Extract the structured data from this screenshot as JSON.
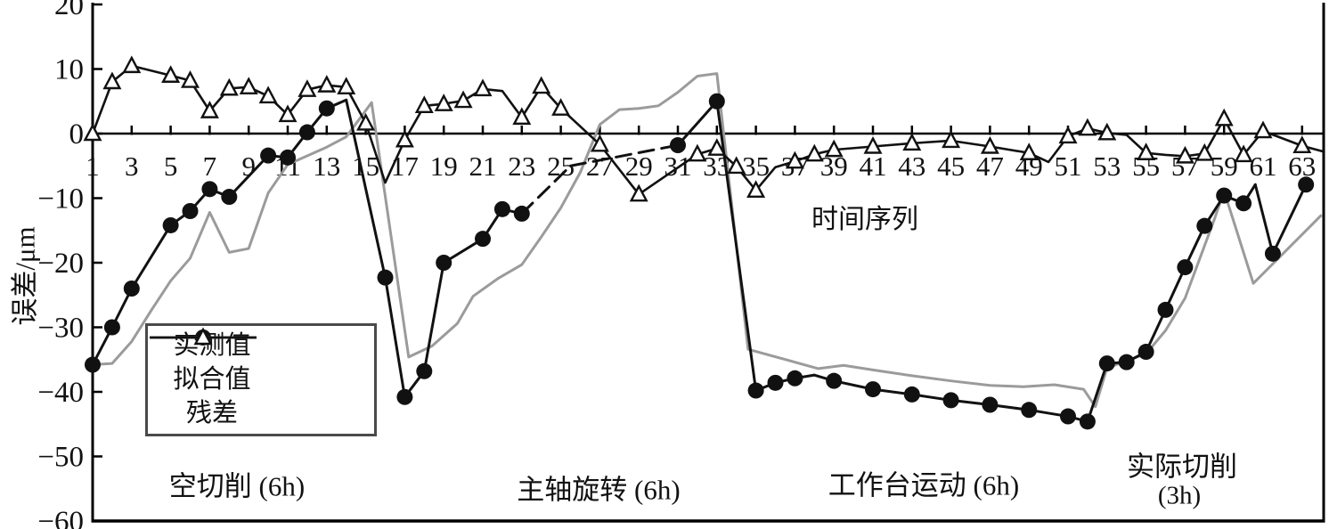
{
  "figure": {
    "background": "#ffffff"
  },
  "chart_data": {
    "type": "line",
    "title": "",
    "xlabel": "时间序列",
    "ylabel": "误差/μm",
    "xlim": [
      1,
      64.2
    ],
    "ylim": [
      -60,
      20
    ],
    "grid": false,
    "legend_position": "inside-lower-left",
    "colors": {
      "measured": "#111111",
      "fitted": "#9b9b9b",
      "residual": "#111111",
      "axis": "#000000",
      "legend_border": "#4a4a4a"
    },
    "yticks": [
      {
        "v": 20,
        "label": "20"
      },
      {
        "v": 10,
        "label": "10"
      },
      {
        "v": 0,
        "label": "0"
      },
      {
        "v": -10,
        "label": "−10"
      },
      {
        "v": -20,
        "label": "−20"
      },
      {
        "v": -30,
        "label": "−30"
      },
      {
        "v": -40,
        "label": "−40"
      },
      {
        "v": -50,
        "label": "−50"
      },
      {
        "v": -60,
        "label": "−60"
      }
    ],
    "xticks": [
      1,
      3,
      5,
      7,
      9,
      11,
      13,
      15,
      17,
      19,
      21,
      23,
      25,
      27,
      29,
      31,
      33,
      35,
      37,
      39,
      41,
      43,
      45,
      47,
      49,
      51,
      53,
      55,
      57,
      59,
      61,
      63
    ],
    "measured_dashed_between": [
      22.9,
      31.1
    ],
    "series": [
      {
        "name": "实测值",
        "role": "measured",
        "marker": "filled-circle",
        "line": "dashed-black",
        "points": [
          [
            1,
            -35.8
          ],
          [
            2,
            -30
          ],
          [
            3,
            -24
          ],
          [
            5,
            -14.2
          ],
          [
            6,
            -12
          ],
          [
            7,
            -8.6
          ],
          [
            8,
            -9.8
          ],
          [
            10,
            -3.4
          ],
          [
            11,
            -3.7
          ],
          [
            12,
            0.2
          ],
          [
            13,
            3.9
          ],
          [
            14,
            5.2,
            0
          ],
          [
            16,
            -22.3
          ],
          [
            17,
            -40.8
          ],
          [
            18,
            -36.8
          ],
          [
            19,
            -20
          ],
          [
            21,
            -16.3
          ],
          [
            22,
            -11.7
          ],
          [
            23,
            -12.4
          ],
          [
            25.5,
            -5,
            0
          ],
          [
            31,
            -1.8
          ],
          [
            33,
            5
          ],
          [
            35,
            -39.8
          ],
          [
            36,
            -38.6
          ],
          [
            37,
            -37.9
          ],
          [
            38,
            -37.4,
            0
          ],
          [
            39,
            -38.3
          ],
          [
            41,
            -39.6
          ],
          [
            43,
            -40.4
          ],
          [
            45,
            -41.3
          ],
          [
            47,
            -42
          ],
          [
            49,
            -42.8
          ],
          [
            51,
            -43.8
          ],
          [
            52,
            -44.6
          ],
          [
            53,
            -35.6
          ],
          [
            54,
            -35.4
          ],
          [
            55,
            -33.8
          ],
          [
            56,
            -27.3
          ],
          [
            57,
            -20.7
          ],
          [
            58,
            -14.3
          ],
          [
            59,
            -9.6
          ],
          [
            60,
            -10.8
          ],
          [
            60.6,
            -7.9,
            0
          ],
          [
            61.5,
            -18.6
          ],
          [
            63.2,
            -7.9
          ]
        ]
      },
      {
        "name": "拟合值",
        "role": "fitted",
        "marker": "none",
        "line": "solid-gray",
        "points": [
          [
            1,
            -35.8
          ],
          [
            2,
            -35.6
          ],
          [
            3,
            -32.2
          ],
          [
            4,
            -27.4
          ],
          [
            5,
            -22.8
          ],
          [
            6,
            -19.3
          ],
          [
            7,
            -12.2
          ],
          [
            8,
            -18.4
          ],
          [
            9,
            -17.8
          ],
          [
            10,
            -9.2
          ],
          [
            11,
            -4.8
          ],
          [
            13,
            -2.1
          ],
          [
            14,
            -0.5
          ],
          [
            15.3,
            4.8
          ],
          [
            17.2,
            -34.6
          ],
          [
            18.4,
            -32.9
          ],
          [
            19.7,
            -29.4
          ],
          [
            20.5,
            -25.2
          ],
          [
            21.8,
            -22.4
          ],
          [
            23,
            -20.3
          ],
          [
            24,
            -16
          ],
          [
            25,
            -11.5
          ],
          [
            26,
            -6
          ],
          [
            27,
            1.4
          ],
          [
            28,
            3.7
          ],
          [
            29,
            3.9
          ],
          [
            30,
            4.3
          ],
          [
            31,
            6.4
          ],
          [
            32,
            8.9
          ],
          [
            33,
            9.3
          ],
          [
            34.6,
            -33.4
          ],
          [
            35.8,
            -34.4
          ],
          [
            37,
            -35.4
          ],
          [
            38.2,
            -36.4
          ],
          [
            39.5,
            -35.9
          ],
          [
            41,
            -36.6
          ],
          [
            43,
            -37.5
          ],
          [
            45,
            -38.3
          ],
          [
            47,
            -39
          ],
          [
            48.7,
            -39.2
          ],
          [
            50.3,
            -38.9
          ],
          [
            51.8,
            -39.6
          ],
          [
            52.4,
            -42.3
          ],
          [
            53,
            -36.3
          ],
          [
            54,
            -35.2
          ],
          [
            55,
            -34.1
          ],
          [
            56,
            -30.5
          ],
          [
            57,
            -25.5
          ],
          [
            58.5,
            -13.3
          ],
          [
            59,
            -8.9
          ],
          [
            60.5,
            -23.2
          ],
          [
            64,
            -12.6
          ]
        ]
      },
      {
        "name": "残差",
        "role": "residual",
        "marker": "open-triangle",
        "line": "solid-black",
        "points": [
          [
            1,
            0
          ],
          [
            2,
            8
          ],
          [
            3,
            10.5
          ],
          [
            5,
            9
          ],
          [
            6,
            8.2
          ],
          [
            7,
            3.5
          ],
          [
            8,
            7
          ],
          [
            9,
            7.2
          ],
          [
            10,
            5.8
          ],
          [
            11,
            2.9
          ],
          [
            12,
            6.8
          ],
          [
            13,
            7.5
          ],
          [
            14,
            7.2
          ],
          [
            15,
            1.6
          ],
          [
            16,
            -7.6,
            0
          ],
          [
            17,
            -1
          ],
          [
            18,
            4.3
          ],
          [
            19,
            4.6
          ],
          [
            20,
            5.1
          ],
          [
            21,
            6.9
          ],
          [
            22,
            6.6,
            0
          ],
          [
            23,
            2.5
          ],
          [
            24,
            7.3
          ],
          [
            25,
            3.9
          ],
          [
            27,
            -1.7
          ],
          [
            29,
            -9.4
          ],
          [
            32,
            -3.2
          ],
          [
            33,
            -2.3
          ],
          [
            34,
            -5.1
          ],
          [
            35,
            -8.8
          ],
          [
            36,
            -5.2,
            0
          ],
          [
            37,
            -4.3
          ],
          [
            38,
            -3.2
          ],
          [
            39,
            -2.5
          ],
          [
            41,
            -2
          ],
          [
            43,
            -1.5
          ],
          [
            45,
            -1.1
          ],
          [
            47,
            -2
          ],
          [
            49,
            -3
          ],
          [
            50,
            -4.4,
            0
          ],
          [
            51,
            -0.4
          ],
          [
            52,
            0.8
          ],
          [
            53,
            0.1
          ],
          [
            54,
            -0.2,
            0
          ],
          [
            55,
            -3
          ],
          [
            56,
            -3.3,
            0
          ],
          [
            57,
            -3.5
          ],
          [
            58,
            -3.1
          ],
          [
            59,
            2.3
          ],
          [
            60,
            -3.3
          ],
          [
            61,
            0.4
          ],
          [
            63,
            -1.9
          ],
          [
            64.1,
            -2.8,
            0
          ]
        ]
      }
    ],
    "annotations": [
      {
        "text": "空切削 (6h)"
      },
      {
        "text": "主轴旋转 (6h)"
      },
      {
        "text": "工作台运动 (6h)"
      },
      {
        "text": "实际切削"
      },
      {
        "text": "(3h)"
      }
    ]
  }
}
